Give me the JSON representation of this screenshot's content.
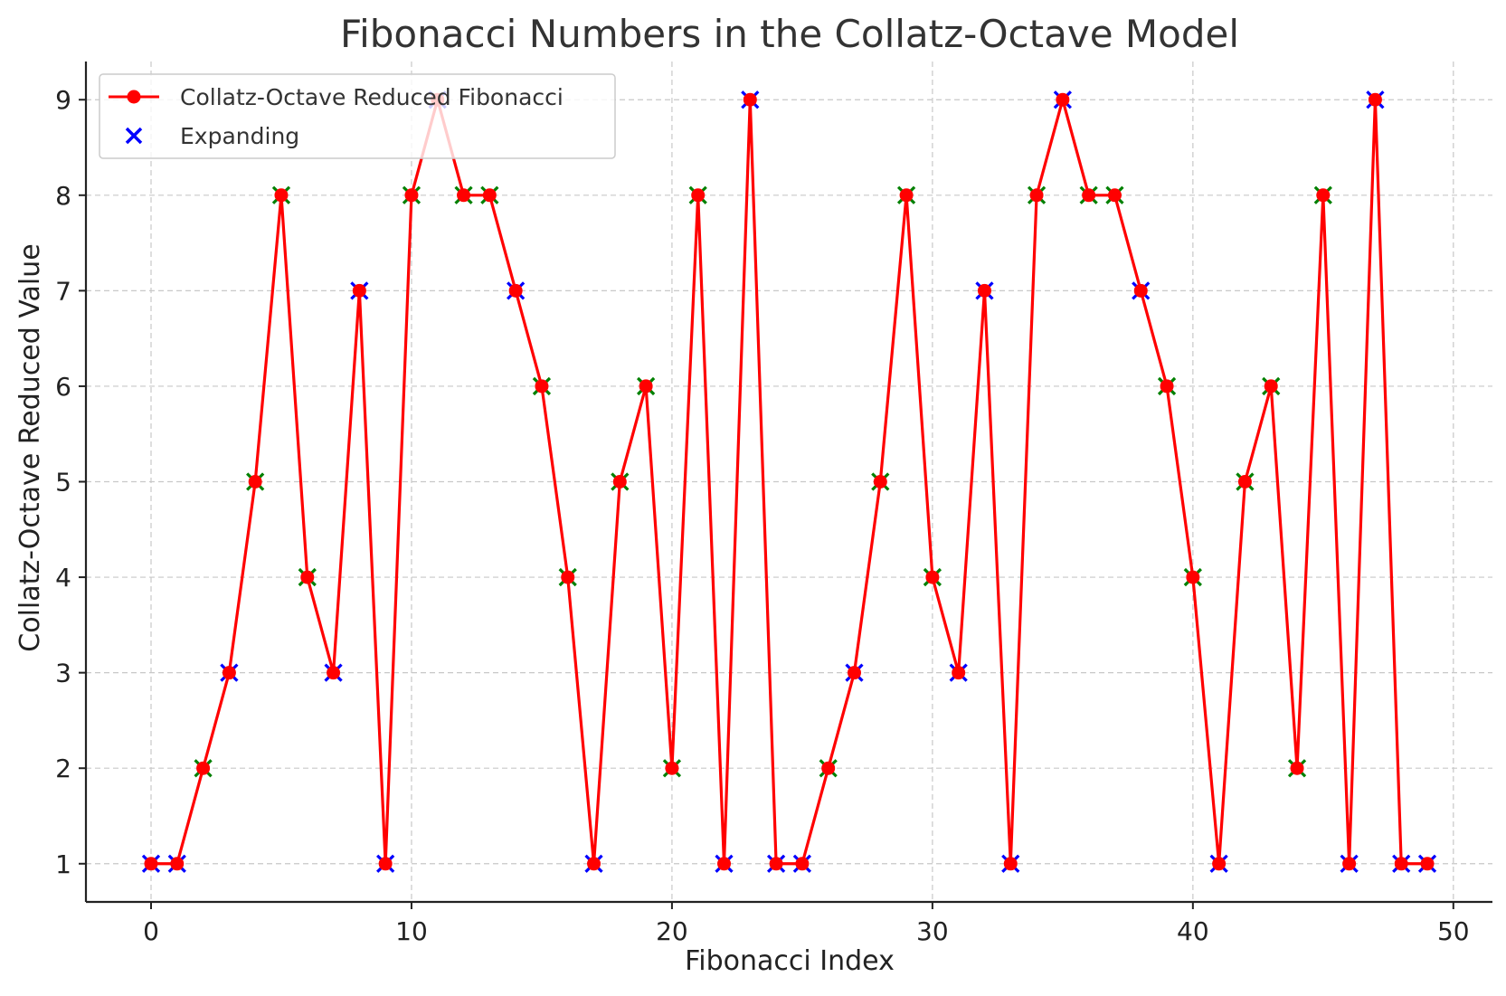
{
  "chart_data": {
    "type": "line",
    "title": "Fibonacci Numbers in the Collatz-Octave Model",
    "xlabel": "Fibonacci Index",
    "ylabel": "Collatz-Octave Reduced Value",
    "xlim": [
      -2.5,
      51.5
    ],
    "ylim": [
      0.6,
      9.4
    ],
    "xticks": [
      0,
      10,
      20,
      30,
      40,
      50
    ],
    "yticks": [
      1,
      2,
      3,
      4,
      5,
      6,
      7,
      8,
      9
    ],
    "grid": true,
    "legend_position": "upper-left",
    "x": [
      0,
      1,
      2,
      3,
      4,
      5,
      6,
      7,
      8,
      9,
      10,
      11,
      12,
      13,
      14,
      15,
      16,
      17,
      18,
      19,
      20,
      21,
      22,
      23,
      24,
      25,
      26,
      27,
      28,
      29,
      30,
      31,
      32,
      33,
      34,
      35,
      36,
      37,
      38,
      39,
      40,
      41,
      42,
      43,
      44,
      45,
      46,
      47,
      48,
      49
    ],
    "series": [
      {
        "name": "Collatz-Octave Reduced Fibonacci",
        "color": "#ff0000",
        "marker": "circle",
        "values": [
          1,
          1,
          2,
          3,
          5,
          8,
          4,
          3,
          7,
          1,
          8,
          9,
          8,
          8,
          7,
          6,
          4,
          1,
          5,
          6,
          2,
          8,
          1,
          9,
          1,
          1,
          2,
          3,
          5,
          8,
          4,
          3,
          7,
          1,
          8,
          9,
          8,
          8,
          7,
          6,
          4,
          1,
          5,
          6,
          2,
          8,
          1,
          9,
          1,
          1
        ]
      },
      {
        "name": "Expanding",
        "color": "#0000ff",
        "marker": "x",
        "x": [
          0,
          1,
          3,
          7,
          8,
          9,
          11,
          14,
          17,
          22,
          23,
          24,
          25,
          27,
          31,
          32,
          33,
          35,
          38,
          41,
          46,
          47,
          48,
          49
        ],
        "values": [
          1,
          1,
          3,
          3,
          7,
          1,
          9,
          7,
          1,
          1,
          9,
          1,
          1,
          3,
          3,
          7,
          1,
          9,
          7,
          1,
          1,
          9,
          1,
          1
        ]
      },
      {
        "color": "#008000",
        "marker": "x",
        "x": [
          2,
          4,
          5,
          6,
          10,
          12,
          13,
          15,
          16,
          18,
          19,
          20,
          21,
          26,
          28,
          29,
          30,
          34,
          36,
          37,
          39,
          40,
          42,
          43,
          44,
          45
        ],
        "values": [
          2,
          5,
          8,
          4,
          8,
          8,
          8,
          6,
          4,
          5,
          6,
          2,
          8,
          2,
          5,
          8,
          4,
          8,
          8,
          8,
          6,
          4,
          5,
          6,
          2,
          8
        ]
      }
    ]
  }
}
